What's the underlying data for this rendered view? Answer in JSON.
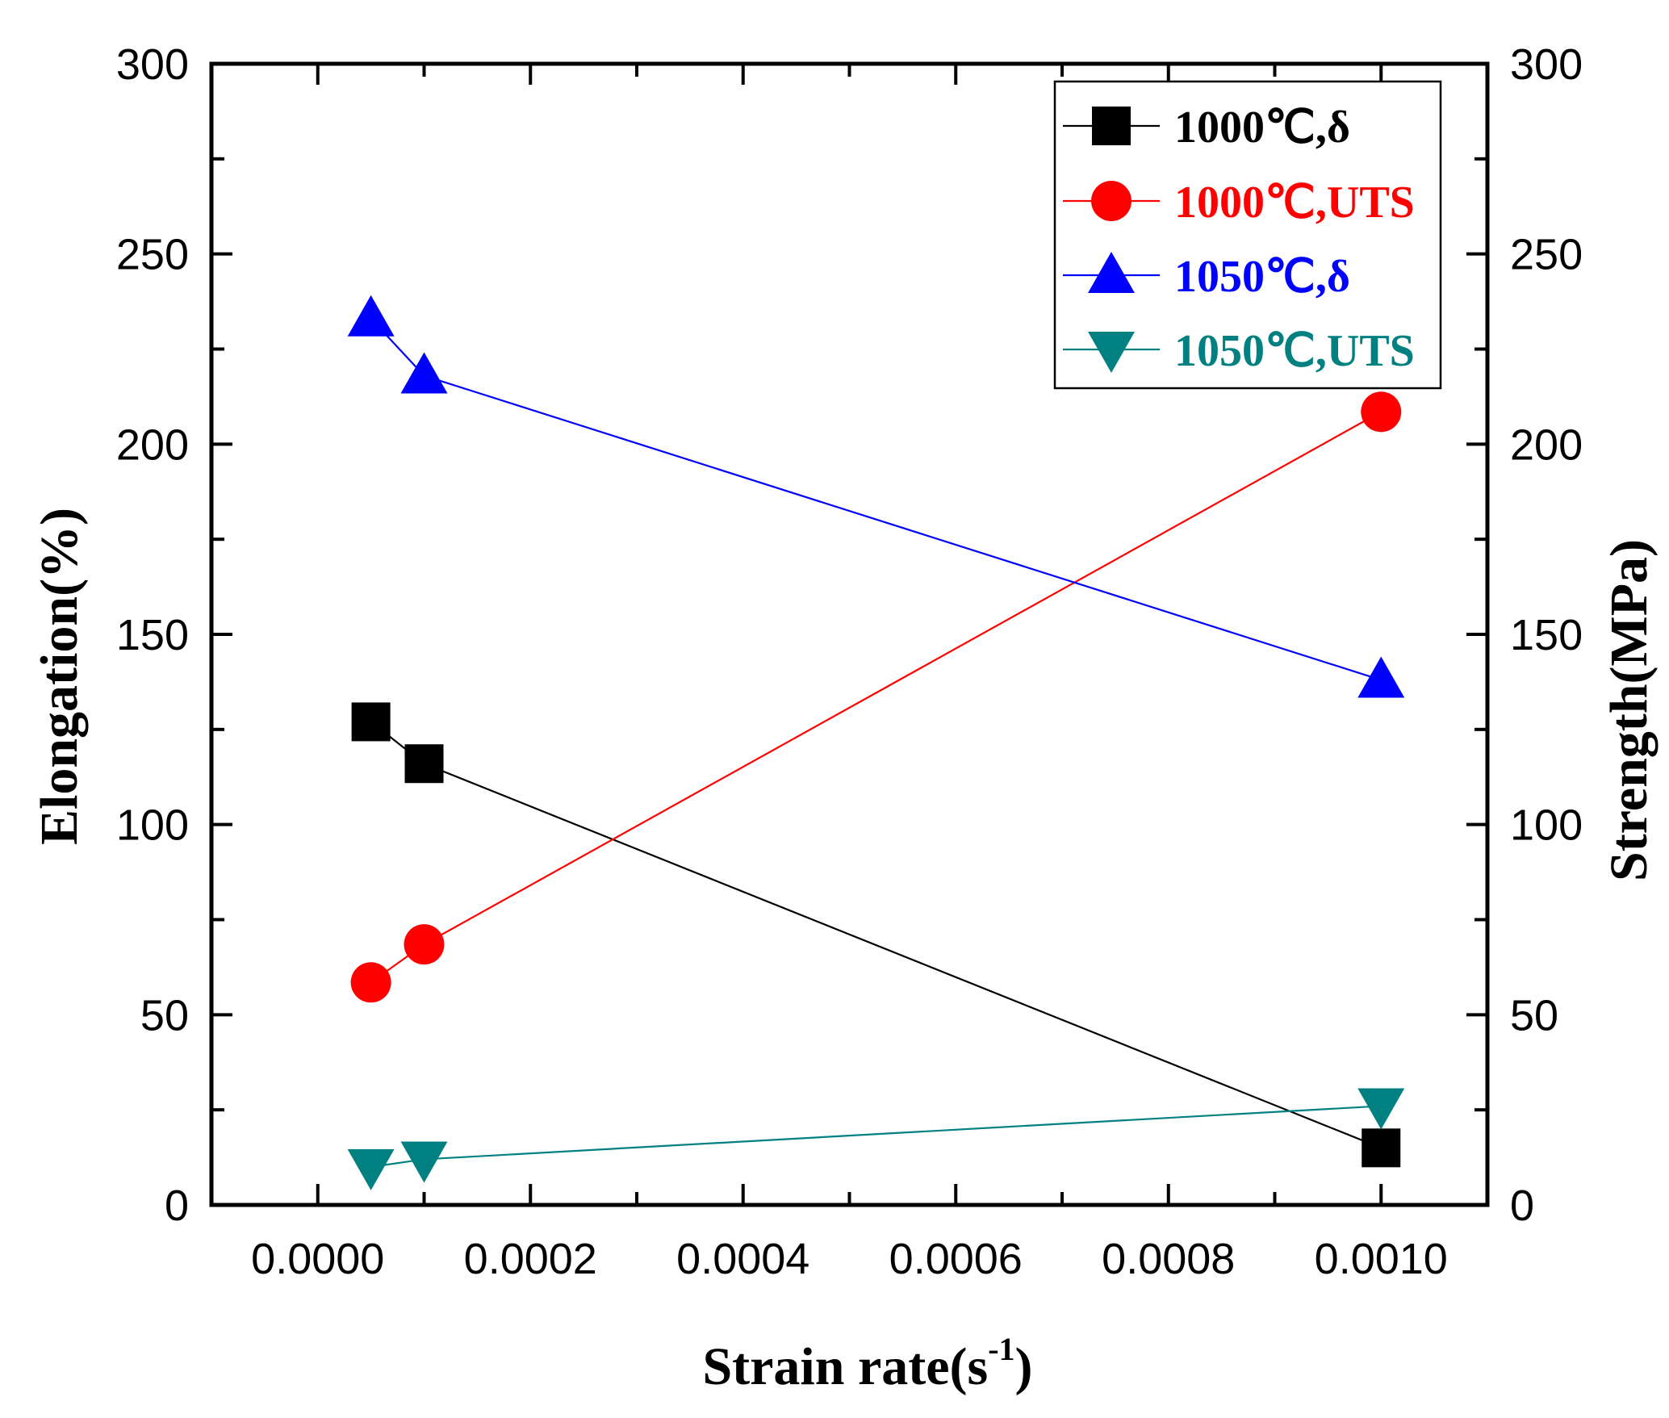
{
  "chart_data": {
    "type": "line",
    "xlabel": "Strain rate(s",
    "xlabel_superscript": "-1",
    "xlabel_suffix": ")",
    "ylabel_left": "Elongation(%)",
    "ylabel_right": "Strength(MPa)",
    "xlim": [
      -0.0001,
      0.0011
    ],
    "ylim": [
      0,
      300
    ],
    "y2lim": [
      0,
      300
    ],
    "x_ticks": [
      0.0,
      0.0002,
      0.0004,
      0.0006,
      0.0008,
      0.001
    ],
    "x_tick_labels": [
      "0.0000",
      "0.0002",
      "0.0004",
      "0.0006",
      "0.0008",
      "0.0010"
    ],
    "y_ticks": [
      0,
      50,
      100,
      150,
      200,
      250,
      300
    ],
    "y_tick_labels": [
      "0",
      "50",
      "100",
      "150",
      "200",
      "250",
      "300"
    ],
    "legend_position": "top-right",
    "series": [
      {
        "name": "1000℃,δ",
        "color": "#000000",
        "marker": "square",
        "axis": "left",
        "x": [
          5e-05,
          0.0001,
          0.001
        ],
        "y": [
          127,
          116,
          15
        ]
      },
      {
        "name": "1000℃,UTS",
        "color": "#ff0000",
        "marker": "circle",
        "axis": "right",
        "x": [
          5e-05,
          0.0001,
          0.001
        ],
        "y": [
          58.5,
          68.5,
          208.5
        ]
      },
      {
        "name": "1050℃,δ",
        "color": "#0000ff",
        "marker": "triangle-up",
        "axis": "left",
        "x": [
          5e-05,
          0.0001,
          0.001
        ],
        "y": [
          233,
          218,
          138
        ]
      },
      {
        "name": "1050℃,UTS",
        "color": "#008080",
        "marker": "triangle-down",
        "axis": "right",
        "x": [
          5e-05,
          0.0001,
          0.001
        ],
        "y": [
          10,
          12,
          26
        ]
      }
    ]
  }
}
